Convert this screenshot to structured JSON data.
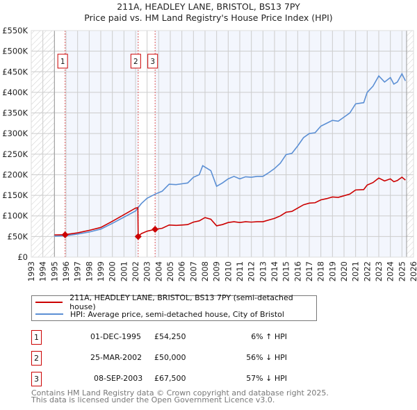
{
  "title": "211A, HEADLEY LANE, BRISTOL, BS13 7PY",
  "subtitle": "Price paid vs. HM Land Registry's House Price Index (HPI)",
  "chart_data": {
    "type": "line",
    "xlim": [
      1993,
      2026
    ],
    "ylim": [
      0,
      550000
    ],
    "y_ticks": [
      {
        "v": 0,
        "label": "£0"
      },
      {
        "v": 50000,
        "label": "£50K"
      },
      {
        "v": 100000,
        "label": "£100K"
      },
      {
        "v": 150000,
        "label": "£150K"
      },
      {
        "v": 200000,
        "label": "£200K"
      },
      {
        "v": 250000,
        "label": "£250K"
      },
      {
        "v": 300000,
        "label": "£300K"
      },
      {
        "v": 350000,
        "label": "£350K"
      },
      {
        "v": 400000,
        "label": "£400K"
      },
      {
        "v": 450000,
        "label": "£450K"
      },
      {
        "v": 500000,
        "label": "£500K"
      },
      {
        "v": 550000,
        "label": "£550K"
      }
    ],
    "x_ticks": [
      "1993",
      "1994",
      "1995",
      "1996",
      "1997",
      "1998",
      "1999",
      "2000",
      "2001",
      "2002",
      "2003",
      "2004",
      "2005",
      "2006",
      "2007",
      "2008",
      "2009",
      "2010",
      "2011",
      "2012",
      "2013",
      "2014",
      "2015",
      "2016",
      "2017",
      "2018",
      "2019",
      "2020",
      "2021",
      "2022",
      "2023",
      "2024",
      "2025",
      "2026"
    ],
    "data_start": 1995,
    "data_end": 2025.4,
    "grid": true,
    "series": [
      {
        "name": "211A, HEADLEY LANE, BRISTOL, BS13 7PY (semi-detached house)",
        "color": "#cc0000",
        "points": [
          [
            1995,
            54
          ],
          [
            1995.92,
            54.25
          ],
          [
            1996,
            55
          ],
          [
            1997,
            59
          ],
          [
            1998,
            65
          ],
          [
            1999,
            72
          ],
          [
            2000,
            87
          ],
          [
            2001,
            103
          ],
          [
            2002,
            119
          ],
          [
            2002.2,
            120
          ],
          [
            2002.23,
            50
          ],
          [
            2002.5,
            57
          ],
          [
            2003,
            63
          ],
          [
            2003.69,
            67.5
          ],
          [
            2004.3,
            70
          ],
          [
            2004.9,
            78
          ],
          [
            2005.5,
            77
          ],
          [
            2006,
            78
          ],
          [
            2006.5,
            79
          ],
          [
            2007,
            85
          ],
          [
            2007.5,
            88
          ],
          [
            2008,
            96
          ],
          [
            2008.5,
            92
          ],
          [
            2009,
            76
          ],
          [
            2009.5,
            79
          ],
          [
            2010,
            84
          ],
          [
            2010.5,
            86
          ],
          [
            2011,
            84
          ],
          [
            2011.5,
            86
          ],
          [
            2012,
            85
          ],
          [
            2012.5,
            86
          ],
          [
            2013,
            86
          ],
          [
            2013.5,
            90
          ],
          [
            2014,
            94
          ],
          [
            2014.5,
            100
          ],
          [
            2015,
            109
          ],
          [
            2015.5,
            111
          ],
          [
            2016,
            119
          ],
          [
            2016.5,
            127
          ],
          [
            2017,
            131
          ],
          [
            2017.5,
            132
          ],
          [
            2018,
            139
          ],
          [
            2018.5,
            142
          ],
          [
            2019,
            146
          ],
          [
            2019.5,
            145
          ],
          [
            2020,
            149
          ],
          [
            2020.5,
            153
          ],
          [
            2021,
            163
          ],
          [
            2021.7,
            164
          ],
          [
            2022,
            175
          ],
          [
            2022.5,
            181
          ],
          [
            2023,
            192
          ],
          [
            2023.5,
            185
          ],
          [
            2024,
            190
          ],
          [
            2024.3,
            183
          ],
          [
            2024.6,
            186
          ],
          [
            2025,
            194
          ],
          [
            2025.3,
            187
          ]
        ]
      },
      {
        "name": "HPI: Average price, semi-detached house, City of Bristol",
        "color": "#5b8fd4",
        "points": [
          [
            1995,
            51
          ],
          [
            1996,
            52
          ],
          [
            1997,
            56
          ],
          [
            1998,
            61
          ],
          [
            1999,
            68
          ],
          [
            2000,
            82
          ],
          [
            2001,
            97
          ],
          [
            2002,
            112
          ],
          [
            2002.5,
            130
          ],
          [
            2003,
            143
          ],
          [
            2003.7,
            153
          ],
          [
            2004.3,
            160
          ],
          [
            2004.9,
            177
          ],
          [
            2005.5,
            176
          ],
          [
            2006,
            178
          ],
          [
            2006.5,
            180
          ],
          [
            2007,
            194
          ],
          [
            2007.5,
            200
          ],
          [
            2007.8,
            222
          ],
          [
            2008.5,
            210
          ],
          [
            2009,
            172
          ],
          [
            2009.5,
            180
          ],
          [
            2010,
            190
          ],
          [
            2010.5,
            196
          ],
          [
            2011,
            190
          ],
          [
            2011.5,
            195
          ],
          [
            2012,
            194
          ],
          [
            2012.5,
            196
          ],
          [
            2013,
            196
          ],
          [
            2013.5,
            205
          ],
          [
            2014,
            215
          ],
          [
            2014.5,
            228
          ],
          [
            2015,
            249
          ],
          [
            2015.5,
            252
          ],
          [
            2016,
            270
          ],
          [
            2016.5,
            290
          ],
          [
            2017,
            300
          ],
          [
            2017.5,
            302
          ],
          [
            2018,
            318
          ],
          [
            2018.5,
            325
          ],
          [
            2019,
            332
          ],
          [
            2019.5,
            330
          ],
          [
            2020,
            340
          ],
          [
            2020.5,
            350
          ],
          [
            2021,
            372
          ],
          [
            2021.7,
            375
          ],
          [
            2022,
            400
          ],
          [
            2022.5,
            415
          ],
          [
            2023,
            440
          ],
          [
            2023.5,
            425
          ],
          [
            2024,
            436
          ],
          [
            2024.3,
            420
          ],
          [
            2024.6,
            425
          ],
          [
            2025,
            445
          ],
          [
            2025.3,
            428
          ]
        ]
      }
    ],
    "sales": [
      {
        "id": "1",
        "x": 1995.92,
        "y": 54.25
      },
      {
        "id": "2",
        "x": 2002.23,
        "y": 50
      },
      {
        "id": "3",
        "x": 2003.69,
        "y": 67.5
      }
    ]
  },
  "legend": {
    "property": "211A, HEADLEY LANE, BRISTOL, BS13 7PY (semi-detached house)",
    "hpi": "HPI: Average price, semi-detached house, City of Bristol"
  },
  "table": [
    {
      "id": "1",
      "date": "01-DEC-1995",
      "price": "£54,250",
      "hpi": "6% ↑ HPI"
    },
    {
      "id": "2",
      "date": "25-MAR-2002",
      "price": "£50,000",
      "hpi": "56% ↓ HPI"
    },
    {
      "id": "3",
      "date": "08-SEP-2003",
      "price": "£67,500",
      "hpi": "57% ↓ HPI"
    }
  ],
  "footer": [
    "Contains HM Land Registry data © Crown copyright and database right 2025.",
    "This data is licensed under the Open Government Licence v3.0."
  ]
}
